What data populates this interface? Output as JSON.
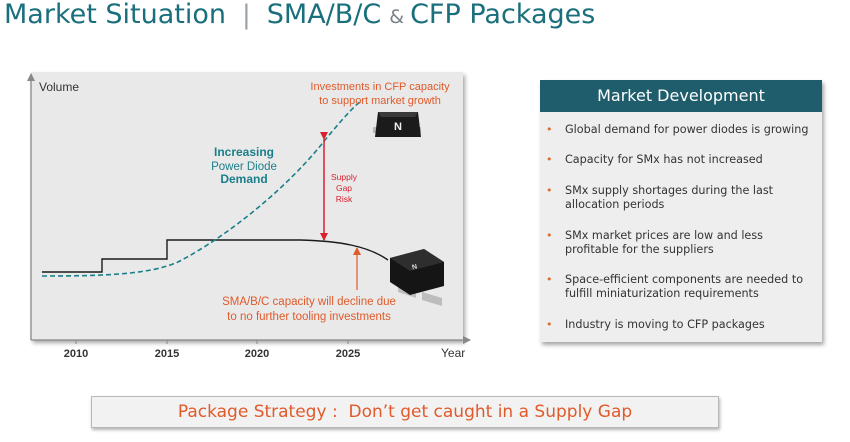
{
  "header": {
    "title_part1": "Market Situation",
    "separator": "|",
    "title_part2": "SMA/B/C",
    "ampersand": "&",
    "title_part3": "CFP Packages"
  },
  "chart": {
    "y_label": "Volume",
    "x_label": "Year",
    "x_ticks": [
      "2010",
      "2015",
      "2020",
      "2025"
    ],
    "investment_note": [
      "Investments in CFP capacity",
      "to support market growth"
    ],
    "demand_label": [
      "Increasing",
      "Power Diode",
      "Demand"
    ],
    "gap_label": [
      "Supply",
      "Gap",
      "Risk"
    ],
    "decline_note": [
      "SMA/B/C capacity will decline due",
      "to no further tooling investments"
    ],
    "chip_logo": "N",
    "colors": {
      "demand_curve": "#1a7f8a",
      "capacity_line": "#1a1a1a",
      "gap_arrow": "#d8202f",
      "notes": "#e05a2a"
    }
  },
  "market_development": {
    "heading": "Market Development",
    "items": [
      {
        "bullet": "•",
        "lines": [
          "Global demand for power diodes is growing"
        ]
      },
      {
        "bullet": "•",
        "lines": [
          "Capacity for SMx has not increased"
        ]
      },
      {
        "bullet": "•",
        "lines": [
          "SMx supply shortages during the last",
          "allocation periods"
        ]
      },
      {
        "bullet": "•",
        "lines": [
          "SMx market prices are low and less",
          "profitable for the suppliers"
        ]
      },
      {
        "bullet": "•",
        "lines": [
          "Space-efficient components are needed to",
          "fulfill miniaturization requirements"
        ]
      },
      {
        "bullet": "•",
        "lines": [
          "Industry is moving to CFP packages"
        ]
      }
    ]
  },
  "strategy": {
    "label": "Package Strategy :  Don’t get caught in a Supply Gap"
  }
}
